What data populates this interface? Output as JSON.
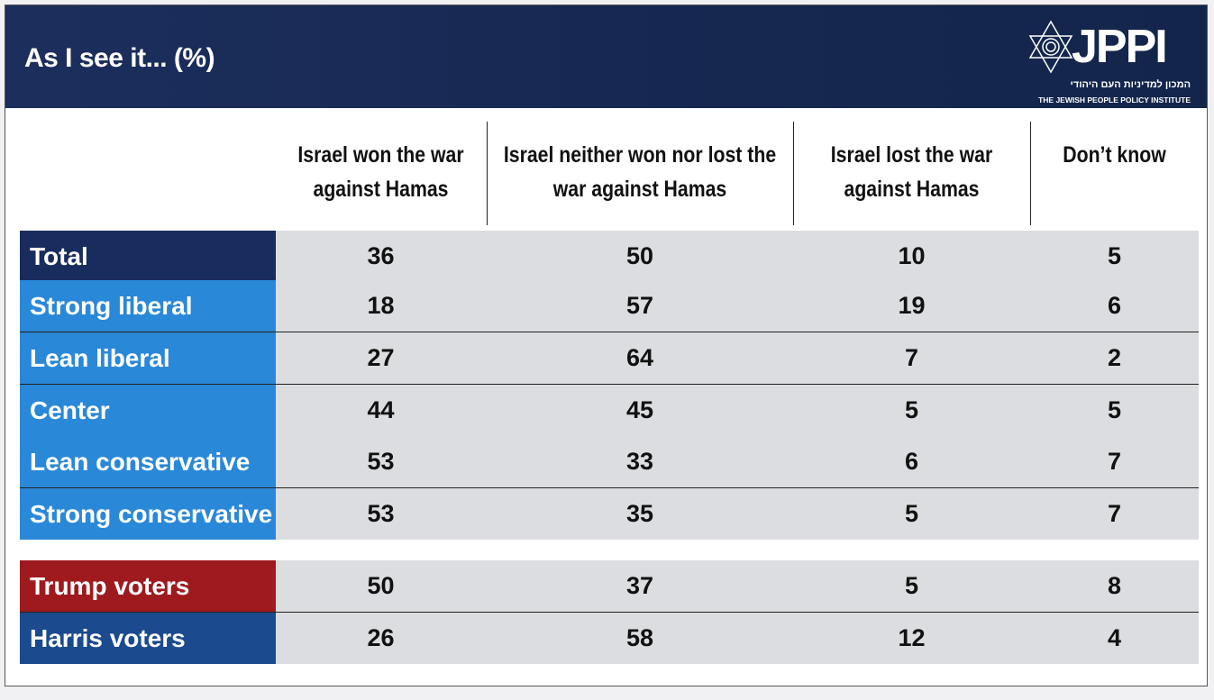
{
  "header": {
    "title": "As I see it... (%)"
  },
  "logo": {
    "name": "JPPI",
    "hebrew": "המכון למדיניות העם היהודי",
    "english": "THE JEWISH PEOPLE POLICY INSTITUTE"
  },
  "chart_data": {
    "type": "table",
    "title": "As I see it... (%)",
    "columns": [
      "Israel won the war against Hamas",
      "Israel neither won nor lost the war against Hamas",
      "Israel lost the war against Hamas",
      "Don’t know"
    ],
    "rows": [
      {
        "label": "Total",
        "values": [
          36,
          50,
          10,
          5
        ],
        "color": "#192c5e"
      },
      {
        "label": "Strong liberal",
        "values": [
          18,
          57,
          19,
          6
        ],
        "color": "#2a88d8"
      },
      {
        "label": "Lean liberal",
        "values": [
          27,
          64,
          7,
          2
        ],
        "color": "#2a88d8"
      },
      {
        "label": "Center",
        "values": [
          44,
          45,
          5,
          5
        ],
        "color": "#2a88d8"
      },
      {
        "label": "Lean conservative",
        "values": [
          53,
          33,
          6,
          7
        ],
        "color": "#2a88d8"
      },
      {
        "label": "Strong conservative",
        "values": [
          53,
          35,
          5,
          7
        ],
        "color": "#2a88d8"
      },
      {
        "label": "Trump voters",
        "values": [
          50,
          37,
          5,
          8
        ],
        "color": "#9e1a1e"
      },
      {
        "label": "Harris voters",
        "values": [
          26,
          58,
          12,
          4
        ],
        "color": "#1b4a8e"
      }
    ]
  }
}
